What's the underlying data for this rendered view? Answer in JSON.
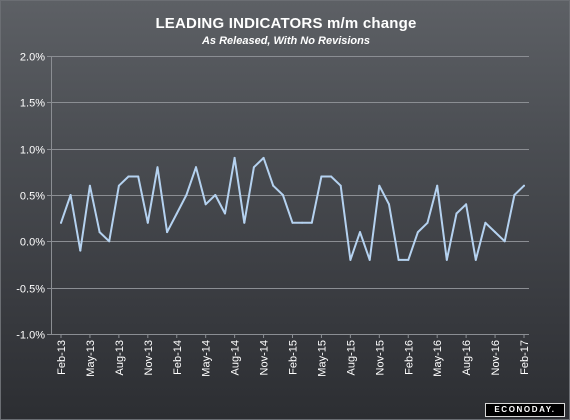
{
  "chart_data": {
    "type": "line",
    "title": "LEADING INDICATORS m/m change",
    "subtitle": "As Released, With No Revisions",
    "xlabel": "",
    "ylabel": "",
    "x": [
      "Feb-13",
      "Mar-13",
      "Apr-13",
      "May-13",
      "Jun-13",
      "Jul-13",
      "Aug-13",
      "Sep-13",
      "Oct-13",
      "Nov-13",
      "Dec-13",
      "Jan-14",
      "Feb-14",
      "Mar-14",
      "Apr-14",
      "May-14",
      "Jun-14",
      "Jul-14",
      "Aug-14",
      "Sep-14",
      "Oct-14",
      "Nov-14",
      "Dec-14",
      "Jan-15",
      "Feb-15",
      "Mar-15",
      "Apr-15",
      "May-15",
      "Jun-15",
      "Jul-15",
      "Aug-15",
      "Sep-15",
      "Oct-15",
      "Nov-15",
      "Dec-15",
      "Jan-16",
      "Feb-16",
      "Mar-16",
      "Apr-16",
      "May-16",
      "Jun-16",
      "Jul-16",
      "Aug-16",
      "Sep-16",
      "Oct-16",
      "Nov-16",
      "Dec-16",
      "Jan-17",
      "Feb-17"
    ],
    "series": [
      {
        "values": [
          0.2,
          0.5,
          -0.1,
          0.6,
          0.1,
          0.0,
          0.6,
          0.7,
          0.7,
          0.2,
          0.8,
          0.1,
          0.3,
          0.5,
          0.8,
          0.4,
          0.5,
          0.3,
          0.9,
          0.2,
          0.8,
          0.9,
          0.6,
          0.5,
          0.2,
          0.2,
          0.2,
          0.7,
          0.7,
          0.6,
          -0.2,
          0.1,
          -0.2,
          0.6,
          0.4,
          -0.2,
          -0.2,
          0.1,
          0.2,
          0.6,
          -0.2,
          0.3,
          0.4,
          -0.2,
          0.2,
          0.1,
          0.0,
          0.5,
          0.6
        ],
        "color": "#b5d2f0"
      }
    ],
    "x_tick_labels": [
      "Feb-13",
      "May-13",
      "Aug-13",
      "Nov-13",
      "Feb-14",
      "May-14",
      "Aug-14",
      "Nov-14",
      "Feb-15",
      "May-15",
      "Aug-15",
      "Nov-15",
      "Feb-16",
      "May-16",
      "Aug-16",
      "Nov-16",
      "Feb-17"
    ],
    "y_ticks": [
      2.0,
      1.5,
      1.0,
      0.5,
      0.0,
      -0.5,
      -1.0
    ],
    "y_tick_labels": [
      "2.0%",
      "1.5%",
      "1.0%",
      "0.5%",
      "0.0%",
      "-0.5%",
      "-1.0%"
    ],
    "ylim": [
      -1.0,
      2.0
    ],
    "grid": true,
    "legend": "none",
    "colors": {
      "background_top": "#5d6065",
      "background_bottom": "#2c2e32",
      "gridline": "#8b8e93",
      "text": "#ffffff"
    }
  },
  "logo": {
    "text": "ECONODAY."
  }
}
